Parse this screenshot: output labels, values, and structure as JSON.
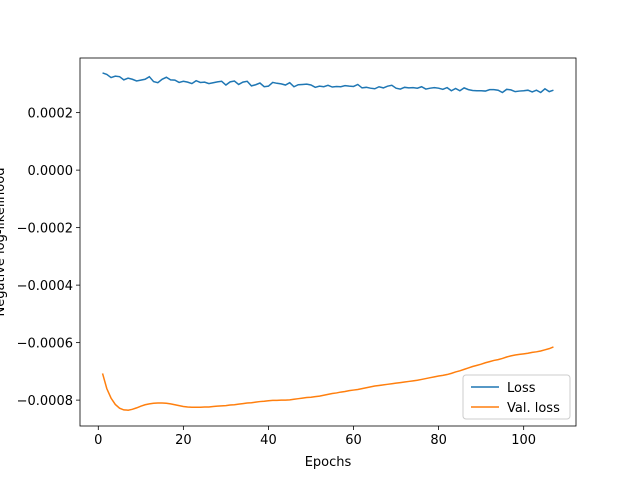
{
  "chart_data": {
    "type": "line",
    "xlabel": "Epochs",
    "ylabel": "Negative log-likelihood",
    "x": [
      1,
      2,
      3,
      4,
      5,
      6,
      7,
      8,
      9,
      10,
      11,
      12,
      13,
      14,
      15,
      16,
      17,
      18,
      19,
      20,
      21,
      22,
      23,
      24,
      25,
      26,
      27,
      28,
      29,
      30,
      31,
      32,
      33,
      34,
      35,
      36,
      37,
      38,
      39,
      40,
      41,
      42,
      43,
      44,
      45,
      46,
      47,
      48,
      49,
      50,
      51,
      52,
      53,
      54,
      55,
      56,
      57,
      58,
      59,
      60,
      61,
      62,
      63,
      64,
      65,
      66,
      67,
      68,
      69,
      70,
      71,
      72,
      73,
      74,
      75,
      76,
      77,
      78,
      79,
      80,
      81,
      82,
      83,
      84,
      85,
      86,
      87,
      88,
      89,
      90,
      91,
      92,
      93,
      94,
      95,
      96,
      97,
      98,
      99,
      100,
      101,
      102,
      103,
      104,
      105,
      106,
      107
    ],
    "series": [
      {
        "name": "Loss",
        "color": "#1f77b4",
        "values": [
          0.000338,
          0.000333,
          0.000322,
          0.000327,
          0.000325,
          0.000314,
          0.00032,
          0.000316,
          0.00031,
          0.000313,
          0.000316,
          0.000325,
          0.000308,
          0.000304,
          0.000316,
          0.000323,
          0.000314,
          0.000313,
          0.000305,
          0.000309,
          0.000306,
          0.000301,
          0.000311,
          0.000305,
          0.000306,
          0.000301,
          0.000304,
          0.000307,
          0.000309,
          0.000296,
          0.000307,
          0.00031,
          0.000298,
          0.000306,
          0.000309,
          0.000293,
          0.000297,
          0.000303,
          0.00029,
          0.000292,
          0.000305,
          0.000302,
          0.0003,
          0.000296,
          0.000304,
          0.00029,
          0.000297,
          0.000298,
          0.000299,
          0.000296,
          0.000288,
          0.000292,
          0.00029,
          0.000295,
          0.000289,
          0.000291,
          0.00029,
          0.000294,
          0.000292,
          0.000291,
          0.000298,
          0.000286,
          0.000288,
          0.000285,
          0.000283,
          0.00029,
          0.000286,
          0.000292,
          0.000295,
          0.000285,
          0.000282,
          0.000288,
          0.000286,
          0.000287,
          0.000285,
          0.00029,
          0.000282,
          0.000285,
          0.000287,
          0.000285,
          0.000281,
          0.000287,
          0.000276,
          0.000284,
          0.000276,
          0.000286,
          0.00028,
          0.000277,
          0.000276,
          0.000276,
          0.000275,
          0.00028,
          0.00028,
          0.000278,
          0.00027,
          0.000281,
          0.000279,
          0.000273,
          0.000275,
          0.000276,
          0.000278,
          0.000272,
          0.000278,
          0.00027,
          0.000283,
          0.000273,
          0.000278
        ]
      },
      {
        "name": "Val. loss",
        "color": "#ff7f0e",
        "values": [
          -0.000707,
          -0.00076,
          -0.000793,
          -0.000815,
          -0.000828,
          -0.000834,
          -0.000835,
          -0.000832,
          -0.000827,
          -0.000821,
          -0.000816,
          -0.000813,
          -0.000811,
          -0.00081,
          -0.00081,
          -0.000811,
          -0.000813,
          -0.000816,
          -0.000819,
          -0.000822,
          -0.000824,
          -0.000825,
          -0.000825,
          -0.000825,
          -0.000824,
          -0.000824,
          -0.000822,
          -0.000821,
          -0.00082,
          -0.000819,
          -0.000817,
          -0.000816,
          -0.000814,
          -0.000812,
          -0.00081,
          -0.000809,
          -0.000807,
          -0.000805,
          -0.000804,
          -0.000802,
          -0.000801,
          -0.000801,
          -0.0008,
          -0.0008,
          -0.000799,
          -0.000797,
          -0.000795,
          -0.000793,
          -0.000791,
          -0.00079,
          -0.000788,
          -0.000786,
          -0.000783,
          -0.00078,
          -0.000777,
          -0.000775,
          -0.000772,
          -0.00077,
          -0.000767,
          -0.000765,
          -0.000763,
          -0.00076,
          -0.000757,
          -0.000754,
          -0.000751,
          -0.000749,
          -0.000747,
          -0.000745,
          -0.000743,
          -0.000741,
          -0.000739,
          -0.000737,
          -0.000735,
          -0.000733,
          -0.000731,
          -0.000728,
          -0.000725,
          -0.000722,
          -0.000719,
          -0.000716,
          -0.000714,
          -0.000711,
          -0.000707,
          -0.000702,
          -0.000698,
          -0.000693,
          -0.000688,
          -0.000683,
          -0.000679,
          -0.000675,
          -0.00067,
          -0.000666,
          -0.000662,
          -0.000659,
          -0.000655,
          -0.00065,
          -0.000646,
          -0.000643,
          -0.000641,
          -0.000639,
          -0.000637,
          -0.000634,
          -0.000632,
          -0.000629,
          -0.000625,
          -0.000621,
          -0.000615
        ]
      }
    ],
    "xlim": [
      -4.3,
      112.3
    ],
    "ylim": [
      -0.00089,
      0.00039
    ],
    "xticks": [
      0,
      20,
      40,
      60,
      80,
      100
    ],
    "yticks": [
      {
        "value": -0.0008,
        "label": "−0.0008"
      },
      {
        "value": -0.0006,
        "label": "−0.0006"
      },
      {
        "value": -0.0004,
        "label": "−0.0004"
      },
      {
        "value": -0.0002,
        "label": "−0.0002"
      },
      {
        "value": 0,
        "label": "0.0000"
      },
      {
        "value": 0.0002,
        "label": "0.0002"
      }
    ],
    "legend": "lower right",
    "grid": false
  }
}
